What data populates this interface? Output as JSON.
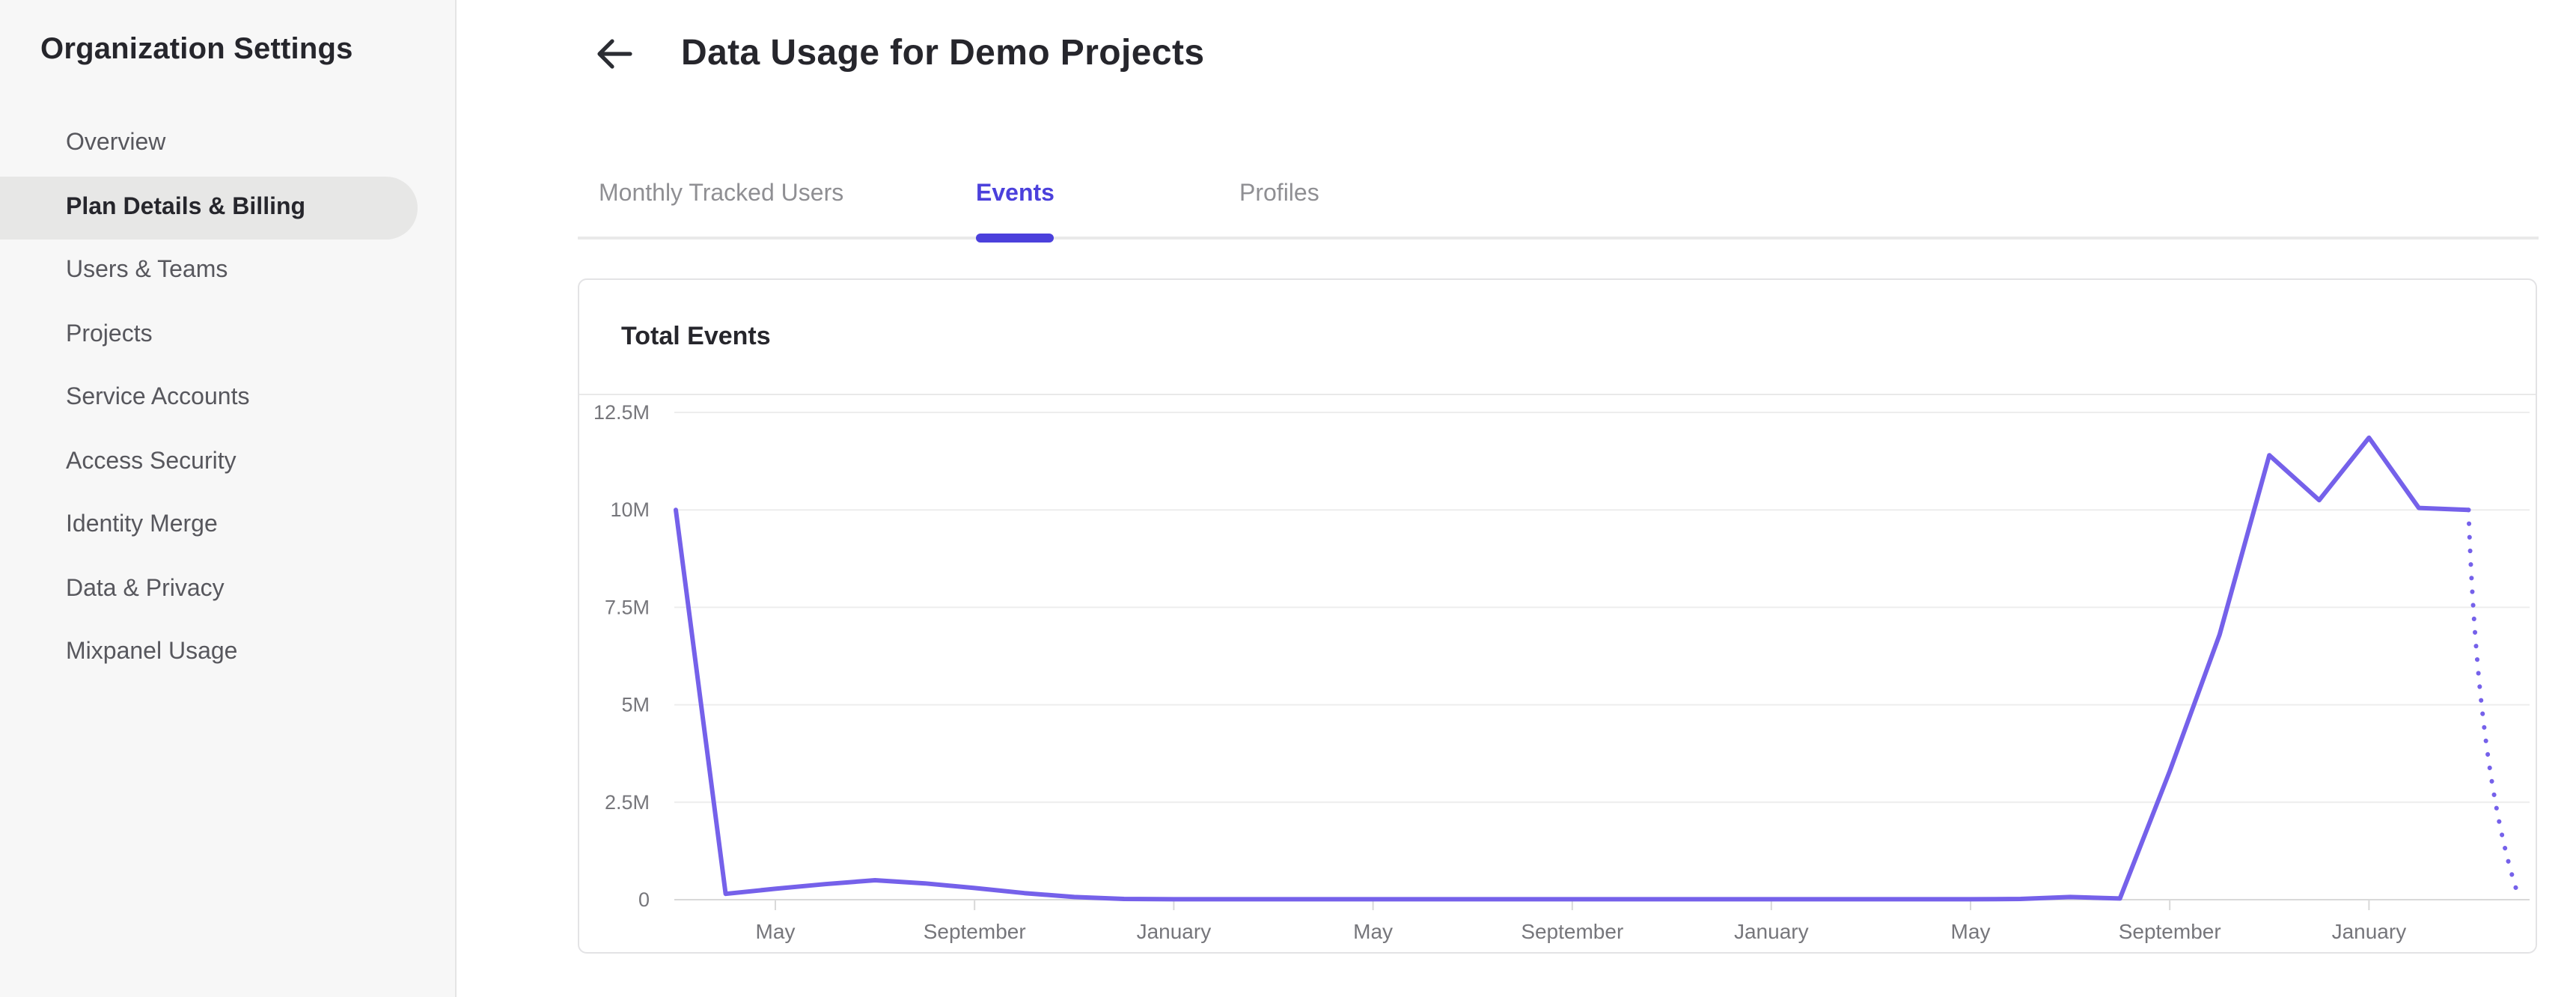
{
  "sidebar": {
    "title": "Organization Settings",
    "items": [
      {
        "label": "Overview",
        "active": false
      },
      {
        "label": "Plan Details & Billing",
        "active": true
      },
      {
        "label": "Users & Teams",
        "active": false
      },
      {
        "label": "Projects",
        "active": false
      },
      {
        "label": "Service Accounts",
        "active": false
      },
      {
        "label": "Access Security",
        "active": false
      },
      {
        "label": "Identity Merge",
        "active": false
      },
      {
        "label": "Data & Privacy",
        "active": false
      },
      {
        "label": "Mixpanel Usage",
        "active": false
      }
    ]
  },
  "header": {
    "back_icon": "arrow-left-icon",
    "title": "Data Usage for Demo Projects"
  },
  "tabs": [
    {
      "label": "Monthly Tracked Users",
      "active": false
    },
    {
      "label": "Events",
      "active": true
    },
    {
      "label": "Profiles",
      "active": false
    }
  ],
  "card": {
    "title": "Total Events"
  },
  "chart_data": {
    "type": "line",
    "title": "Total Events",
    "unit": "events per month (millions)",
    "grid": "horizontal",
    "legend": "none",
    "ylim_millions": [
      0,
      12.5
    ],
    "y_tick_labels": [
      "12.5M",
      "10M",
      "7.5M",
      "5M",
      "2.5M",
      "0"
    ],
    "y_tick_values_millions": [
      12.5,
      10,
      7.5,
      5,
      2.5,
      0
    ],
    "x_tick_labels": [
      "May",
      "September",
      "January",
      "May",
      "September",
      "January",
      "May",
      "September",
      "January"
    ],
    "x_tick_month_indices": [
      2,
      6,
      10,
      14,
      18,
      22,
      26,
      30,
      34
    ],
    "months": [
      "Mar",
      "Apr",
      "May",
      "Jun",
      "Jul",
      "Aug",
      "Sep",
      "Oct",
      "Nov",
      "Dec",
      "Jan",
      "Feb",
      "Mar",
      "Apr",
      "May",
      "Jun",
      "Jul",
      "Aug",
      "Sep",
      "Oct",
      "Nov",
      "Dec",
      "Jan",
      "Feb",
      "Mar",
      "Apr",
      "May",
      "Jun",
      "Jul",
      "Aug",
      "Sep",
      "Oct",
      "Nov",
      "Dec",
      "Jan",
      "Feb",
      "Mar",
      "Apr"
    ],
    "values_millions": [
      10,
      0.15,
      0.28,
      0.4,
      0.5,
      0.42,
      0.3,
      0.17,
      0.07,
      0.02,
      0.01,
      0.01,
      0.01,
      0.01,
      0.01,
      0.01,
      0.01,
      0.01,
      0.01,
      0.01,
      0.01,
      0.01,
      0.01,
      0.01,
      0.01,
      0.01,
      0.01,
      0.02,
      0.07,
      0.03,
      3.3,
      6.8,
      11.4,
      10.25,
      11.85,
      10.05,
      10.0,
      0.1
    ],
    "last_segment_style": "dotted-projection",
    "line_color": "#7561ea"
  },
  "colors": {
    "accent": "#4b40dc",
    "line": "#7561ea",
    "sidebar_bg": "#f7f7f7",
    "sidebar_active_pill": "#e7e7e6",
    "text_dark": "#26262c",
    "text_muted": "#8f8f93",
    "grid_line": "#ededed",
    "axis_line": "#d9d9d9",
    "card_border": "#e3e3e5"
  }
}
